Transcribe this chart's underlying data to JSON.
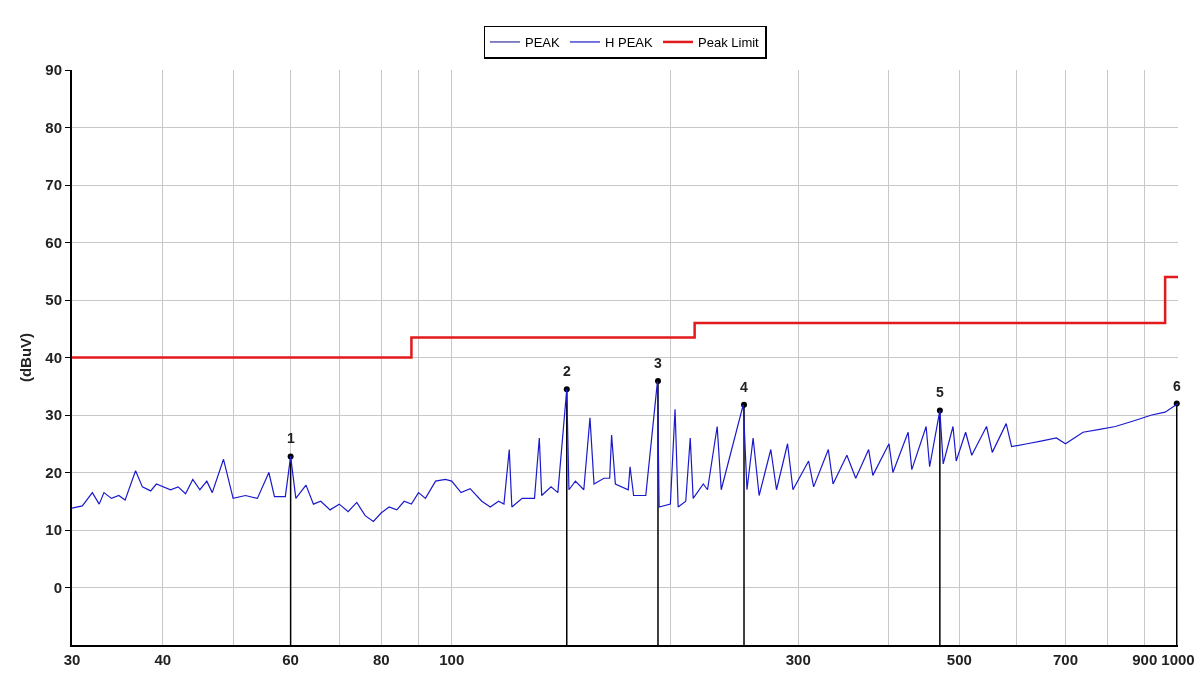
{
  "chart_data": {
    "type": "line",
    "ylabel": "(dBuV)",
    "log": "x",
    "grid": true,
    "legend": "top",
    "marker": "none",
    "line_style": "solid",
    "xlim": [
      30,
      1000
    ],
    "xticks": [
      30,
      40,
      {
        "value": 50,
        "label": null
      },
      60,
      {
        "value": 70,
        "label": null
      },
      80,
      {
        "value": 90,
        "label": null
      },
      100,
      {
        "value": 200,
        "label": null
      },
      300,
      {
        "value": 400,
        "label": null
      },
      500,
      {
        "value": 600,
        "label": null
      },
      700,
      {
        "value": 800,
        "label": null
      },
      900,
      1000
    ],
    "ylim": [
      -10,
      90
    ],
    "yticks": [
      0,
      10,
      20,
      30,
      40,
      50,
      60,
      70,
      80,
      90
    ],
    "series": [
      {
        "name": "PEAK",
        "color": "#333399"
      },
      {
        "name": "H PEAK",
        "color": "#1a1acc",
        "x": [
          30,
          31,
          32,
          32.7,
          33.2,
          34,
          34.8,
          35.5,
          36.7,
          37.5,
          38.5,
          39.2,
          41,
          42,
          43,
          44,
          45,
          46,
          46.8,
          48.5,
          50,
          52,
          54,
          56,
          57,
          59,
          60,
          61,
          63,
          64.5,
          66,
          68,
          70,
          72,
          74,
          76,
          78,
          80,
          82,
          84,
          86,
          88,
          90,
          92,
          95,
          98,
          100,
          103,
          106,
          110,
          113,
          116,
          118,
          120,
          121,
          125,
          130,
          132,
          133,
          137,
          140,
          144,
          145,
          148,
          152,
          155,
          157,
          162,
          165,
          166,
          168,
          175,
          176,
          178,
          185,
          192,
          193,
          200,
          203,
          205,
          210,
          213,
          215,
          222,
          225,
          232,
          235,
          252,
          255,
          260,
          265,
          275,
          280,
          290,
          295,
          310,
          315,
          330,
          335,
          350,
          360,
          375,
          380,
          400,
          405,
          425,
          430,
          450,
          455,
          470,
          475,
          490,
          495,
          510,
          520,
          545,
          555,
          580,
          590,
          620,
          650,
          680,
          700,
          740,
          780,
          820,
          870,
          920,
          960,
          1000
        ],
        "values": [
          13.8,
          14.2,
          16.5,
          14.5,
          16.5,
          15.5,
          16,
          15.2,
          20.3,
          17.5,
          16.8,
          18,
          17,
          17.5,
          16.3,
          18.8,
          17,
          18.5,
          16.5,
          22.3,
          15.5,
          16,
          15.5,
          20,
          15.8,
          15.8,
          22.8,
          15.5,
          17.8,
          14.5,
          15,
          13.5,
          14.5,
          13.2,
          14.8,
          12.5,
          11.5,
          13,
          14,
          13.5,
          15,
          14.5,
          16.5,
          15.5,
          18.5,
          18.8,
          18.5,
          16.5,
          17.2,
          15,
          14,
          15,
          14.5,
          24,
          14,
          15.5,
          15.5,
          26,
          16,
          17.5,
          16.5,
          34.5,
          17,
          18.5,
          17,
          29.5,
          18,
          19,
          19,
          26.5,
          18,
          17,
          21,
          16,
          16,
          35.9,
          14,
          14.5,
          31,
          14,
          15,
          26,
          15.5,
          18,
          17,
          28,
          17,
          31.8,
          17,
          26,
          16,
          24,
          17,
          25,
          17,
          22,
          17.5,
          24,
          18,
          23,
          19,
          24,
          19.5,
          25,
          20,
          27,
          20.5,
          28,
          21,
          30.8,
          21.5,
          28,
          22,
          27,
          23,
          28,
          23.5,
          28.5,
          24.5,
          25,
          25.5,
          26,
          25,
          27,
          27.5,
          28,
          29,
          30,
          30.5,
          32
        ]
      },
      {
        "name": "Peak Limit",
        "type": "step",
        "color": "#e31a1c",
        "x": [
          30,
          88,
          216,
          960,
          1000
        ],
        "values": [
          40,
          43.5,
          46,
          54,
          54
        ]
      },
      {
        "type": "lollipop",
        "color": "#000000",
        "marker": "circle",
        "x": [
          60,
          144,
          192.3,
          252.6,
          470,
          996
        ],
        "values": [
          22.8,
          34.5,
          35.9,
          31.8,
          30.8,
          32
        ]
      }
    ],
    "annotations": [
      {
        "text": "1",
        "x": 60,
        "y": 22.8
      },
      {
        "text": "2",
        "x": 144,
        "y": 34.5
      },
      {
        "text": "3",
        "x": 192.3,
        "y": 35.9
      },
      {
        "text": "4",
        "x": 252.6,
        "y": 31.8
      },
      {
        "text": "5",
        "x": 470,
        "y": 30.8
      },
      {
        "text": "6",
        "x": 996,
        "y": 32
      }
    ]
  }
}
